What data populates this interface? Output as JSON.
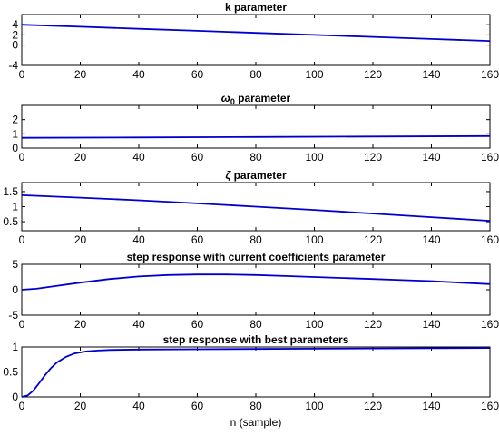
{
  "chart_data": [
    {
      "type": "line",
      "title": "k parameter",
      "title_symbol": "",
      "title_subscript": "",
      "title_rest": "",
      "xlabel": "",
      "xlim": [
        0,
        160
      ],
      "ylim": [
        -4,
        6
      ],
      "xticks": [
        0,
        20,
        40,
        60,
        80,
        100,
        120,
        140,
        160
      ],
      "yticks": [
        -4,
        0,
        2,
        4
      ],
      "series": [
        {
          "color": "#0000cc",
          "x": [
            0,
            20,
            40,
            60,
            80,
            100,
            120,
            140,
            160
          ],
          "y": [
            4.0,
            3.6,
            3.2,
            2.8,
            2.4,
            2.0,
            1.6,
            1.2,
            0.8
          ]
        }
      ]
    },
    {
      "type": "line",
      "title": "",
      "title_symbol": "ω",
      "title_subscript": "0",
      "title_rest": " parameter",
      "xlabel": "",
      "xlim": [
        0,
        160
      ],
      "ylim": [
        0,
        3
      ],
      "xticks": [
        0,
        20,
        40,
        60,
        80,
        100,
        120,
        140,
        160
      ],
      "yticks": [
        0,
        1,
        2
      ],
      "series": [
        {
          "color": "#0000cc",
          "x": [
            0,
            40,
            80,
            120,
            160
          ],
          "y": [
            0.72,
            0.75,
            0.78,
            0.81,
            0.84
          ]
        }
      ]
    },
    {
      "type": "line",
      "title": "",
      "title_symbol": "ζ",
      "title_subscript": "",
      "title_rest": "  parameter",
      "xlabel": "",
      "xlim": [
        0,
        160
      ],
      "ylim": [
        0.2,
        1.8
      ],
      "xticks": [
        0,
        20,
        40,
        60,
        80,
        100,
        120,
        140,
        160
      ],
      "yticks": [
        0.5,
        1,
        1.5
      ],
      "series": [
        {
          "color": "#0000cc",
          "x": [
            0,
            20,
            40,
            60,
            80,
            100,
            120,
            140,
            160
          ],
          "y": [
            1.38,
            1.3,
            1.21,
            1.11,
            1.0,
            0.89,
            0.77,
            0.65,
            0.53
          ]
        }
      ]
    },
    {
      "type": "line",
      "title": "step response with current coefficients parameter",
      "title_symbol": "",
      "title_subscript": "",
      "title_rest": "",
      "xlabel": "",
      "xlim": [
        0,
        160
      ],
      "ylim": [
        -5,
        5
      ],
      "xticks": [
        0,
        20,
        40,
        60,
        80,
        100,
        120,
        140,
        160
      ],
      "yticks": [
        -5,
        0,
        5
      ],
      "series": [
        {
          "color": "#0000cc",
          "x": [
            0,
            5,
            10,
            20,
            30,
            40,
            50,
            60,
            70,
            80,
            90,
            100,
            110,
            120,
            130,
            140,
            150,
            160
          ],
          "y": [
            0,
            0.2,
            0.6,
            1.4,
            2.1,
            2.6,
            2.9,
            3.0,
            3.0,
            2.9,
            2.7,
            2.5,
            2.3,
            2.1,
            1.9,
            1.7,
            1.4,
            1.1
          ]
        }
      ]
    },
    {
      "type": "line",
      "title": "step response with best parameters",
      "title_symbol": "",
      "title_subscript": "",
      "title_rest": "",
      "xlabel": "n (sample)",
      "xlim": [
        0,
        160
      ],
      "ylim": [
        0,
        1
      ],
      "xticks": [
        0,
        20,
        40,
        60,
        80,
        100,
        120,
        140,
        160
      ],
      "yticks": [
        0,
        0.5,
        1
      ],
      "series": [
        {
          "color": "#0000cc",
          "x": [
            0,
            2,
            4,
            6,
            8,
            10,
            12,
            15,
            18,
            22,
            26,
            30,
            40,
            60,
            80,
            100,
            120,
            140,
            160
          ],
          "y": [
            0,
            0.03,
            0.13,
            0.28,
            0.44,
            0.58,
            0.69,
            0.8,
            0.87,
            0.91,
            0.93,
            0.94,
            0.95,
            0.955,
            0.96,
            0.965,
            0.97,
            0.975,
            0.98
          ]
        }
      ]
    }
  ]
}
